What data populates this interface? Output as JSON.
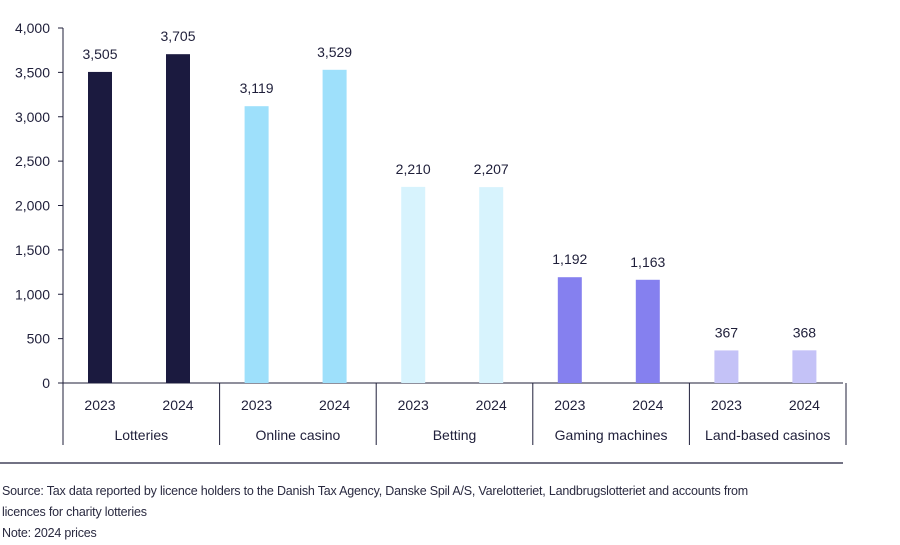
{
  "chart_data": {
    "type": "bar",
    "title": "",
    "xlabel": "",
    "ylabel": "",
    "ylim": [
      0,
      4000
    ],
    "yticks": [
      0,
      500,
      1000,
      1500,
      2000,
      2500,
      3000,
      3500,
      4000
    ],
    "ytick_labels": [
      "0",
      "500",
      "1,000",
      "1,500",
      "2,000",
      "2,500",
      "3,000",
      "3,500",
      "4,000"
    ],
    "groups": [
      {
        "name": "Lotteries",
        "color": "#1b1a3f",
        "bars": [
          {
            "year": "2023",
            "value": 3505,
            "label": "3,505"
          },
          {
            "year": "2024",
            "value": 3705,
            "label": "3,705"
          }
        ]
      },
      {
        "name": "Online casino",
        "color": "#9ee0fb",
        "bars": [
          {
            "year": "2023",
            "value": 3119,
            "label": "3,119"
          },
          {
            "year": "2024",
            "value": 3529,
            "label": "3,529"
          }
        ]
      },
      {
        "name": "Betting",
        "color": "#d7f3fd",
        "bars": [
          {
            "year": "2023",
            "value": 2210,
            "label": "2,210"
          },
          {
            "year": "2024",
            "value": 2207,
            "label": "2,207"
          }
        ]
      },
      {
        "name": "Gaming machines",
        "color": "#8580ef",
        "bars": [
          {
            "year": "2023",
            "value": 1192,
            "label": "1,192"
          },
          {
            "year": "2024",
            "value": 1163,
            "label": "1,163"
          }
        ]
      },
      {
        "name": "Land-based casinos",
        "color": "#c4c2f7",
        "bars": [
          {
            "year": "2023",
            "value": 367,
            "label": "367"
          },
          {
            "year": "2024",
            "value": 368,
            "label": "368"
          }
        ]
      }
    ]
  },
  "notes": {
    "source_line1": "Source: Tax data reported by licence holders to the Danish Tax Agency, Danske Spil A/S, Varelotteriet, Landbrugslotteriet and accounts from",
    "source_line2": "licences for charity lotteries",
    "note": "Note: 2024 prices"
  }
}
